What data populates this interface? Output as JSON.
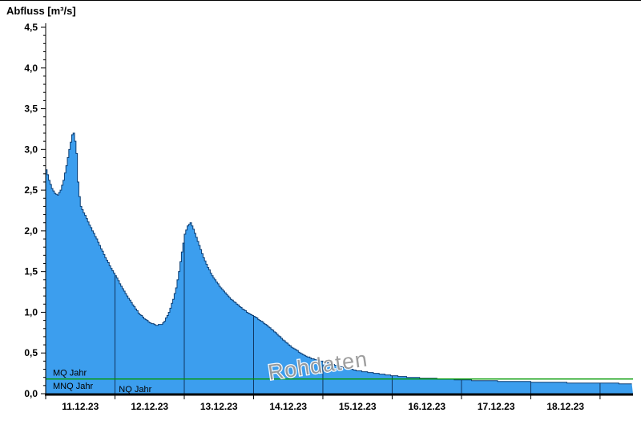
{
  "title": "Abfluss [m³/s]",
  "watermark": "Rohdaten",
  "chart_data": {
    "type": "area",
    "title": "Abfluss [m³/s]",
    "ylabel": "Abfluss [m³/s]",
    "xlabel": "",
    "ylim": [
      0,
      4.5
    ],
    "ytick_step": 0.5,
    "ytick_labels": [
      "0,0",
      "0,5",
      "1,0",
      "1,5",
      "2,0",
      "2,5",
      "3,0",
      "3,5",
      "4,0",
      "4,5"
    ],
    "x_range_hours": [
      0,
      203.4
    ],
    "x_origin": "11.12.23 00:00",
    "day_labels": [
      "11.12.23",
      "12.12.23",
      "13.12.23",
      "14.12.23",
      "15.12.23",
      "16.12.23",
      "17.12.23",
      "18.12.23"
    ],
    "grid": "vertical lines at midnights, clipped to curve",
    "legend_position": "none",
    "series": [
      {
        "name": "Abfluss",
        "unit": "m³/s",
        "points": [
          [
            0,
            2.75
          ],
          [
            1,
            2.62
          ],
          [
            2,
            2.52
          ],
          [
            3,
            2.46
          ],
          [
            4,
            2.44
          ],
          [
            5,
            2.5
          ],
          [
            6,
            2.62
          ],
          [
            7,
            2.8
          ],
          [
            8,
            3.0
          ],
          [
            9,
            3.18
          ],
          [
            9.5,
            3.2
          ],
          [
            10,
            3.1
          ],
          [
            10.5,
            2.95
          ],
          [
            11,
            2.6
          ],
          [
            11.5,
            2.42
          ],
          [
            12,
            2.3
          ],
          [
            13,
            2.22
          ],
          [
            14,
            2.15
          ],
          [
            15,
            2.07
          ],
          [
            16,
            2.0
          ],
          [
            17,
            1.93
          ],
          [
            18,
            1.86
          ],
          [
            19,
            1.78
          ],
          [
            20,
            1.71
          ],
          [
            21,
            1.64
          ],
          [
            22,
            1.57
          ],
          [
            23,
            1.51
          ],
          [
            24,
            1.45
          ],
          [
            26,
            1.32
          ],
          [
            28,
            1.2
          ],
          [
            30,
            1.09
          ],
          [
            32,
            0.99
          ],
          [
            34,
            0.92
          ],
          [
            36,
            0.87
          ],
          [
            38,
            0.84
          ],
          [
            40,
            0.85
          ],
          [
            41,
            0.89
          ],
          [
            42,
            0.96
          ],
          [
            43,
            1.05
          ],
          [
            44,
            1.16
          ],
          [
            45,
            1.3
          ],
          [
            46,
            1.5
          ],
          [
            47,
            1.74
          ],
          [
            48,
            1.96
          ],
          [
            49,
            2.06
          ],
          [
            50,
            2.1
          ],
          [
            51,
            2.02
          ],
          [
            52,
            1.92
          ],
          [
            53,
            1.82
          ],
          [
            54,
            1.72
          ],
          [
            55,
            1.63
          ],
          [
            56,
            1.55
          ],
          [
            57,
            1.48
          ],
          [
            58,
            1.42
          ],
          [
            60,
            1.32
          ],
          [
            62,
            1.24
          ],
          [
            64,
            1.16
          ],
          [
            66,
            1.1
          ],
          [
            68,
            1.04
          ],
          [
            70,
            0.99
          ],
          [
            72,
            0.95
          ],
          [
            74,
            0.9
          ],
          [
            76,
            0.85
          ],
          [
            78,
            0.79
          ],
          [
            80,
            0.73
          ],
          [
            82,
            0.66
          ],
          [
            84,
            0.6
          ],
          [
            86,
            0.55
          ],
          [
            88,
            0.5
          ],
          [
            90,
            0.46
          ],
          [
            92,
            0.43
          ],
          [
            94,
            0.41
          ],
          [
            96,
            0.39
          ],
          [
            100,
            0.35
          ],
          [
            104,
            0.31
          ],
          [
            108,
            0.28
          ],
          [
            112,
            0.26
          ],
          [
            116,
            0.24
          ],
          [
            120,
            0.22
          ],
          [
            126,
            0.2
          ],
          [
            132,
            0.19
          ],
          [
            138,
            0.18
          ],
          [
            144,
            0.17
          ],
          [
            150,
            0.16
          ],
          [
            156,
            0.155
          ],
          [
            162,
            0.15
          ],
          [
            168,
            0.145
          ],
          [
            174,
            0.14
          ],
          [
            180,
            0.135
          ],
          [
            186,
            0.13
          ],
          [
            192,
            0.13
          ],
          [
            198,
            0.125
          ],
          [
            203.4,
            0.12
          ]
        ]
      }
    ],
    "reference_lines": [
      {
        "label": "MQ Jahr",
        "value": 0.18,
        "color": "#009900"
      }
    ],
    "extra_labels": [
      {
        "label": "MNQ Jahr",
        "value": 0.09
      },
      {
        "label": "NQ Jahr",
        "value": 0.03,
        "x_hour": 24.5
      }
    ],
    "colors": {
      "area_fill": "#3c9eee",
      "area_outline": "#0b3d73",
      "midnight_line": "#10355f",
      "axis": "#000000",
      "watermark": "#999999",
      "label_text": "#000000"
    }
  }
}
